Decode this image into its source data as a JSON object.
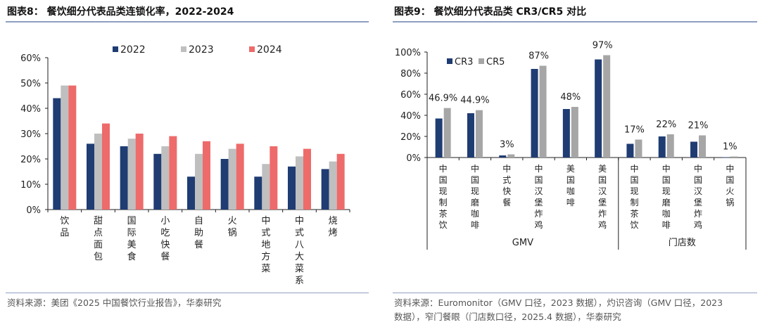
{
  "chart_data": [
    {
      "type": "bar",
      "title": "图表8：  餐饮细分代表品类连锁化率，2022-2024",
      "categories": [
        "饮品",
        "甜点面包",
        "国际美食",
        "小吃快餐",
        "自助餐",
        "火锅",
        "中式地方菜",
        "中式八大菜系",
        "烧烤"
      ],
      "series": [
        {
          "name": "2022",
          "values": [
            44,
            26,
            25,
            22,
            13,
            20,
            13,
            17,
            16
          ]
        },
        {
          "name": "2023",
          "values": [
            49,
            30,
            28,
            25,
            22,
            24,
            18,
            21,
            19
          ]
        },
        {
          "name": "2024",
          "values": [
            49,
            34,
            30,
            29,
            27,
            26,
            25,
            24,
            22
          ]
        }
      ],
      "y_ticks": [
        "0%",
        "10%",
        "20%",
        "30%",
        "40%",
        "50%",
        "60%"
      ],
      "ylim": [
        0,
        60
      ],
      "colors": [
        "#1f3c73",
        "#bfbfbf",
        "#ee6b6b"
      ],
      "grid": false,
      "legend_position": "top-right",
      "source": "资料来源：美团《2025 中国餐饮行业报告》，华泰研究"
    },
    {
      "type": "bar",
      "title": "图表9：  餐饮细分代表品类 CR3/CR5 对比",
      "categories": [
        "中国现制茶饮",
        "中国现磨咖啡",
        "中式快餐",
        "中国汉堡炸鸡",
        "美国咖啡",
        "美国汉堡炸鸡",
        "中国现制茶饮",
        "中国现磨咖啡",
        "中国汉堡炸鸡",
        "中国火锅"
      ],
      "series": [
        {
          "name": "CR3",
          "values": [
            37,
            42,
            2,
            84,
            46,
            93,
            13,
            20,
            15,
            0.3
          ]
        },
        {
          "name": "CR5",
          "values": [
            46.9,
            44.9,
            3,
            87,
            48,
            97,
            17,
            22,
            21,
            1
          ]
        }
      ],
      "data_labels": [
        "46.9%",
        "44.9%",
        "3%",
        "87%",
        "48%",
        "97%",
        "17%",
        "22%",
        "21%",
        "1%"
      ],
      "groups": [
        {
          "label": "GMV",
          "start": 0,
          "end": 5
        },
        {
          "label": "门店数",
          "start": 6,
          "end": 9
        }
      ],
      "y_ticks": [
        "0%",
        "20%",
        "40%",
        "60%",
        "80%",
        "100%"
      ],
      "ylim": [
        0,
        100
      ],
      "colors": [
        "#1f3c73",
        "#a6a6a6"
      ],
      "grid": false,
      "legend_position": "top-left",
      "source": "资料来源：Euromonitor（GMV 口径，2023 数据），灼识咨询（GMV 口径，2023\n数据），窄门餐眼（门店数口径，2025.4 数据），华泰研究"
    }
  ]
}
